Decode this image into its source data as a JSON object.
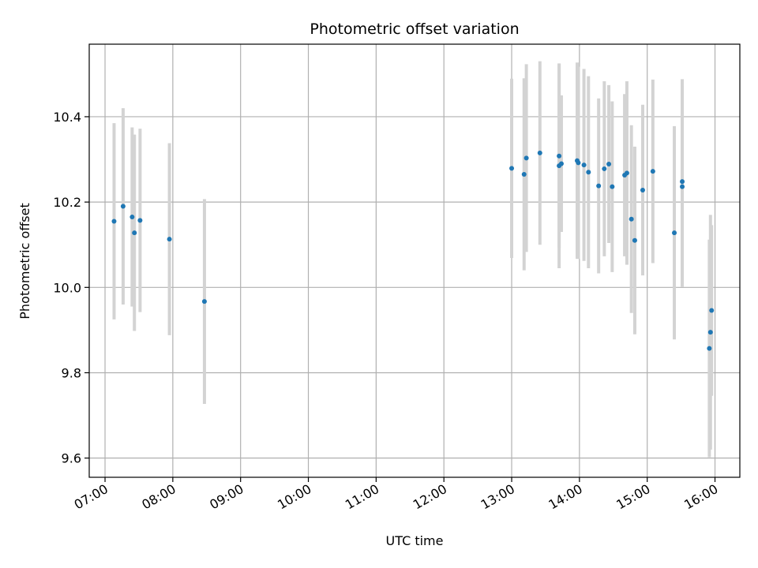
{
  "chart_data": {
    "type": "scatter",
    "title": "Photometric offset variation",
    "xlabel": "UTC time",
    "ylabel": "Photometric offset",
    "grid": true,
    "x_ticks": [
      "07:00",
      "08:00",
      "09:00",
      "10:00",
      "11:00",
      "12:00",
      "13:00",
      "14:00",
      "15:00",
      "16:00"
    ],
    "y_ticks": [
      "9.6",
      "9.8",
      "10.0",
      "10.2",
      "10.4"
    ],
    "xlim": [
      "06:46",
      "16:22"
    ],
    "ylim": [
      9.555,
      10.57
    ],
    "colors": {
      "point": "#1f77b4",
      "errorbar": "#d3d3d3",
      "grid": "#b0b0b0"
    },
    "points": [
      {
        "x": "07:08",
        "y": 10.155,
        "err": 0.23
      },
      {
        "x": "07:16",
        "y": 10.19,
        "err": 0.23
      },
      {
        "x": "07:24",
        "y": 10.165,
        "err": 0.21
      },
      {
        "x": "07:26",
        "y": 10.128,
        "err": 0.23
      },
      {
        "x": "07:31",
        "y": 10.157,
        "err": 0.215
      },
      {
        "x": "07:57",
        "y": 10.113,
        "err": 0.225
      },
      {
        "x": "08:28",
        "y": 9.967,
        "err": 0.24
      },
      {
        "x": "13:00",
        "y": 10.279,
        "err": 0.21
      },
      {
        "x": "13:11",
        "y": 10.265,
        "err": 0.225
      },
      {
        "x": "13:13",
        "y": 10.303,
        "err": 0.22
      },
      {
        "x": "13:25",
        "y": 10.315,
        "err": 0.215
      },
      {
        "x": "13:42",
        "y": 10.308,
        "err": 0.215
      },
      {
        "x": "13:42",
        "y": 10.285,
        "err": 0.24
      },
      {
        "x": "13:44",
        "y": 10.29,
        "err": 0.16
      },
      {
        "x": "13:58",
        "y": 10.297,
        "err": 0.23
      },
      {
        "x": "13:59",
        "y": 10.292,
        "err": 0.225
      },
      {
        "x": "14:04",
        "y": 10.287,
        "err": 0.225
      },
      {
        "x": "14:08",
        "y": 10.27,
        "err": 0.225
      },
      {
        "x": "14:17",
        "y": 10.238,
        "err": 0.205
      },
      {
        "x": "14:22",
        "y": 10.278,
        "err": 0.205
      },
      {
        "x": "14:26",
        "y": 10.289,
        "err": 0.185
      },
      {
        "x": "14:29",
        "y": 10.236,
        "err": 0.2
      },
      {
        "x": "14:40",
        "y": 10.263,
        "err": 0.19
      },
      {
        "x": "14:42",
        "y": 10.268,
        "err": 0.215
      },
      {
        "x": "14:46",
        "y": 10.16,
        "err": 0.22
      },
      {
        "x": "14:49",
        "y": 10.11,
        "err": 0.22
      },
      {
        "x": "14:56",
        "y": 10.228,
        "err": 0.2
      },
      {
        "x": "15:05",
        "y": 10.272,
        "err": 0.215
      },
      {
        "x": "15:24",
        "y": 10.128,
        "err": 0.25
      },
      {
        "x": "15:31",
        "y": 10.248,
        "err": 0.24
      },
      {
        "x": "15:31",
        "y": 10.236,
        "err": 0.235
      },
      {
        "x": "15:55",
        "y": 9.857,
        "err": 0.255
      },
      {
        "x": "15:56",
        "y": 9.895,
        "err": 0.275
      },
      {
        "x": "15:57",
        "y": 9.946,
        "err": 0.2
      }
    ]
  }
}
